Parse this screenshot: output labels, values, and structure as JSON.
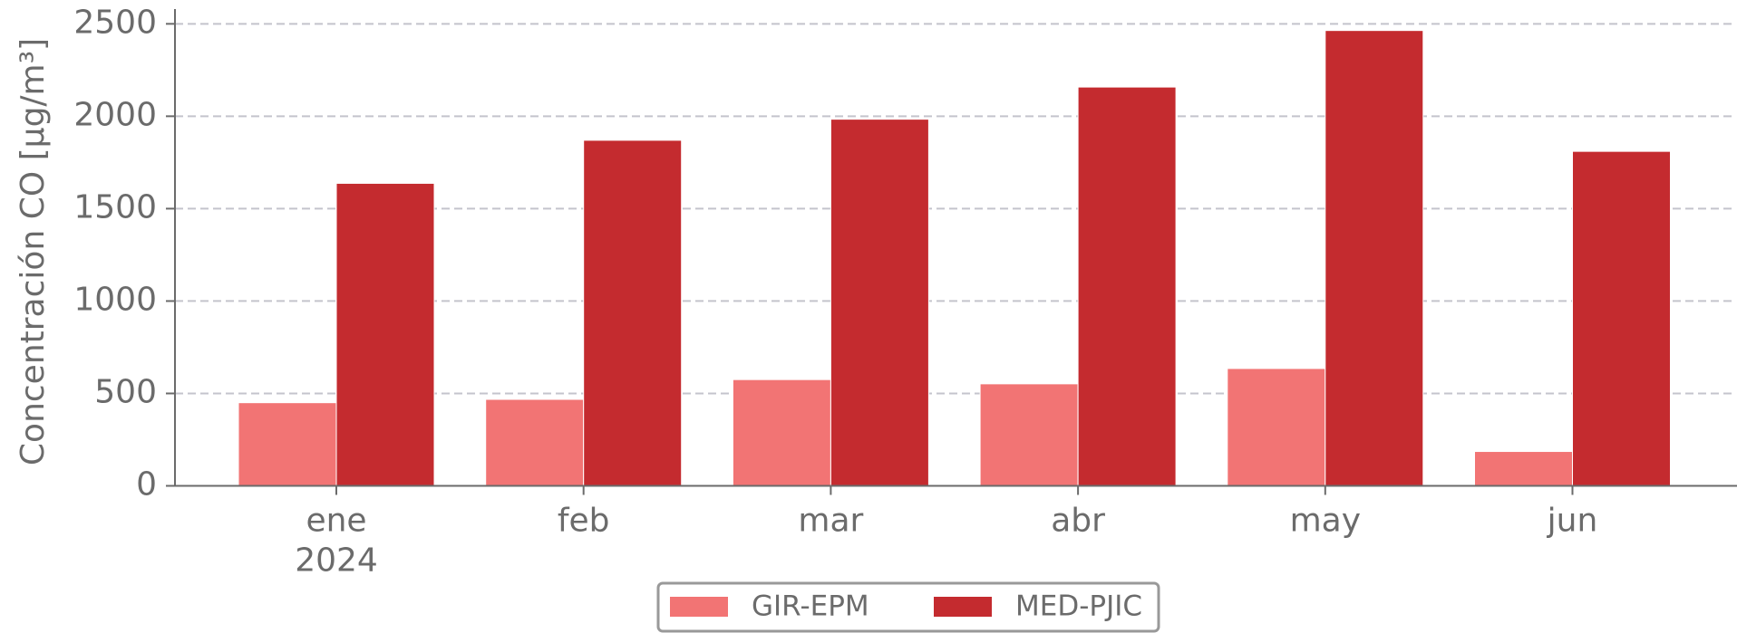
{
  "chart_data": {
    "type": "bar",
    "categories": [
      "ene",
      "feb",
      "mar",
      "abr",
      "may",
      "jun"
    ],
    "year_label": "2024",
    "y_label": "Concentración CO [μg/m³]",
    "series": [
      {
        "name": "GIR-EPM",
        "color": "#f27474",
        "values": [
          450,
          468,
          575,
          552,
          635,
          186
        ]
      },
      {
        "name": "MED-PJIC",
        "color": "#c42b2f",
        "values": [
          1637,
          1870,
          1984,
          2158,
          2464,
          1810
        ]
      }
    ],
    "ylim": [
      0,
      2580
    ],
    "yticks": [
      0,
      500,
      1000,
      1500,
      2000,
      2500
    ],
    "grid": true,
    "legend": "bottom"
  }
}
